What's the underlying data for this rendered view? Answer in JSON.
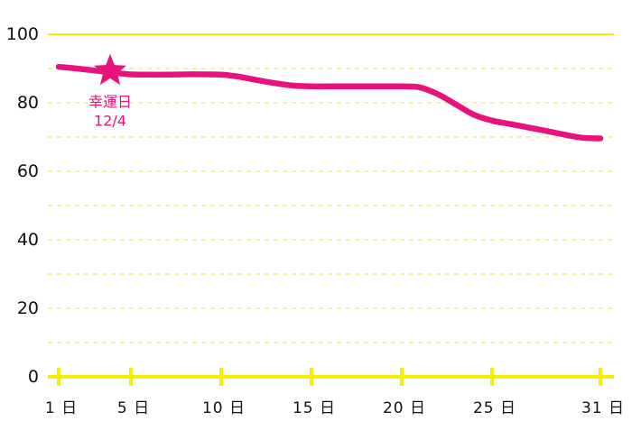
{
  "chart_data": {
    "type": "line",
    "title": "",
    "xlabel": "",
    "ylabel": "",
    "x": [
      1,
      2,
      3,
      4,
      5,
      6,
      7,
      8,
      9,
      10,
      11,
      12,
      13,
      14,
      15,
      16,
      17,
      18,
      19,
      20,
      21,
      22,
      23,
      24,
      25,
      26,
      27,
      28,
      29,
      30,
      31
    ],
    "x_ticks": [
      1,
      5,
      10,
      15,
      20,
      25,
      31
    ],
    "x_tick_labels": [
      "1 日",
      "5 日",
      "10 日",
      "15 日",
      "20 日",
      "25 日",
      "31 日"
    ],
    "xlim": [
      1,
      31
    ],
    "ylim": [
      0,
      100
    ],
    "y_ticks": [
      0,
      20,
      40,
      60,
      80,
      100
    ],
    "y_tick_labels": [
      "0",
      "20",
      "40",
      "60",
      "80",
      "100"
    ],
    "grid": "dashed horizontal every 10",
    "series": [
      {
        "values": [
          90.5,
          90,
          89.4,
          88.8,
          88.3,
          88.2,
          88.2,
          88.3,
          88.3,
          88.2,
          87.6,
          86.6,
          85.7,
          85,
          84.8,
          84.8,
          84.8,
          84.8,
          84.8,
          84.8,
          84.5,
          82.5,
          79.5,
          76.5,
          74.8,
          73.8,
          72.8,
          71.8,
          70.7,
          69.8,
          69.6
        ],
        "color": "#e8127c"
      }
    ],
    "annotations": [
      {
        "label": "幸運日",
        "date": "12/4",
        "x": 4,
        "y": 88.5,
        "marker": "star"
      }
    ],
    "colors": {
      "axis": "#f5ef00",
      "grid": "#f4ee55",
      "line": "#e8127c",
      "annotation": "#e8127c"
    }
  }
}
